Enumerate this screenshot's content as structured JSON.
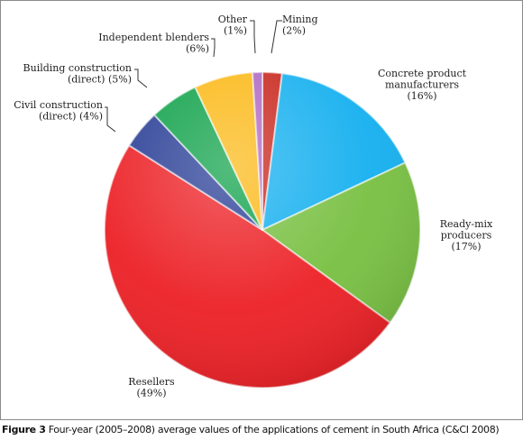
{
  "chart_data": {
    "type": "pie",
    "start_angle_deg": 0,
    "direction": "clockwise",
    "slices": [
      {
        "label_lines": [
          "Mining",
          "(2%)"
        ],
        "value": 2,
        "color": "#c8281e"
      },
      {
        "label_lines": [
          "Concrete product",
          "manufacturers",
          "(16%)"
        ],
        "value": 16,
        "color": "#16b0ef"
      },
      {
        "label_lines": [
          "Ready-mix",
          "producers",
          "(17%)"
        ],
        "value": 17,
        "color": "#79c043"
      },
      {
        "label_lines": [
          "Resellers",
          "(49%)"
        ],
        "value": 49,
        "color": "#ec2227"
      },
      {
        "label_lines": [
          "Civil construction",
          "(direct) (4%)"
        ],
        "value": 4,
        "color": "#2a3f96"
      },
      {
        "label_lines": [
          "Building construction",
          "(direct) (5%)"
        ],
        "value": 5,
        "color": "#10a24a"
      },
      {
        "label_lines": [
          "Independent blenders",
          "(6%)"
        ],
        "value": 6,
        "color": "#fbb917"
      },
      {
        "label_lines": [
          "Other",
          "(1%)"
        ],
        "value": 1,
        "color": "#b069c1"
      }
    ]
  },
  "caption": {
    "figure_label": "Figure 3",
    "text": " Four-year (2005–2008) average values of the applications of cement in South Africa (C&CI 2008)"
  }
}
